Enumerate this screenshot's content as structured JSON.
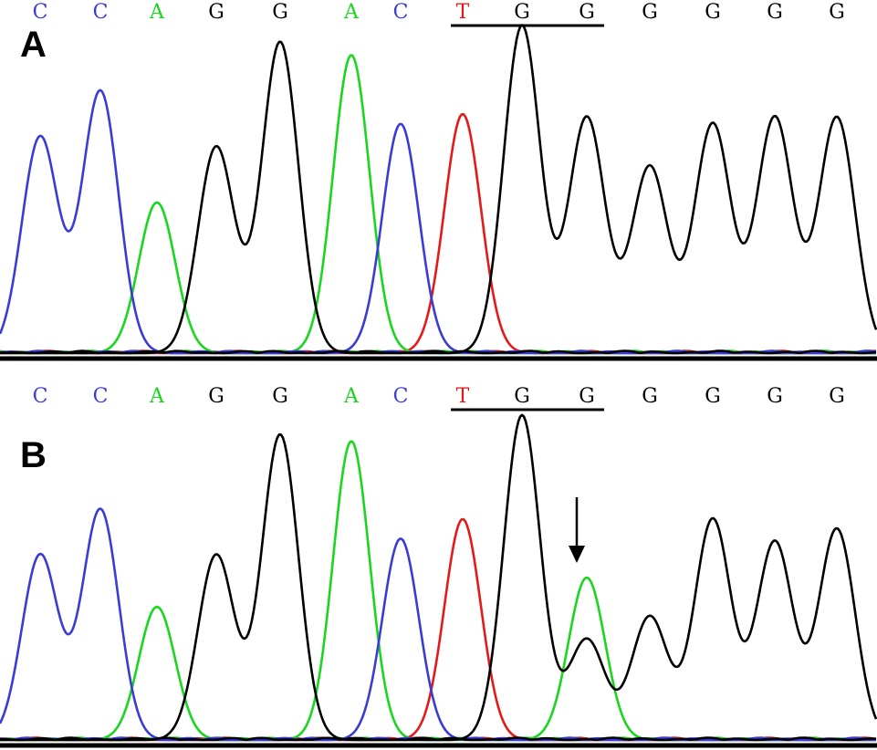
{
  "colors": {
    "C": "#3b3bd6",
    "A": "#19d61e",
    "G": "#000000",
    "T": "#e41a1a",
    "background": "#ffffff",
    "baseline": "#000000"
  },
  "panels": [
    {
      "label": "A",
      "bases": [
        "C",
        "C",
        "A",
        "G",
        "G",
        "A",
        "C",
        "T",
        "G",
        "G",
        "G",
        "G",
        "G",
        "G"
      ],
      "underlined_bases": "TGG (positions 8-10)",
      "peak_heights": [
        0.66,
        0.8,
        0.46,
        0.63,
        0.95,
        0.91,
        0.7,
        0.73,
        1.0,
        0.72,
        0.57,
        0.7,
        0.72,
        0.72
      ],
      "arrow_marker": false
    },
    {
      "label": "B",
      "bases": [
        "C",
        "C",
        "A",
        "G",
        "G",
        "A",
        "C",
        "T",
        "G",
        "G",
        "G",
        "G",
        "G",
        "G"
      ],
      "underlined_bases": "TGG (positions 8-10)",
      "peak_heights": [
        0.57,
        0.71,
        0.41,
        0.57,
        0.94,
        0.92,
        0.62,
        0.68,
        1.0,
        0.31,
        0.38,
        0.68,
        0.61,
        0.65
      ],
      "overlap_peak": {
        "position": 10,
        "base": "A",
        "height": 0.5
      },
      "arrow_marker": true,
      "arrow_position": 10
    }
  ]
}
